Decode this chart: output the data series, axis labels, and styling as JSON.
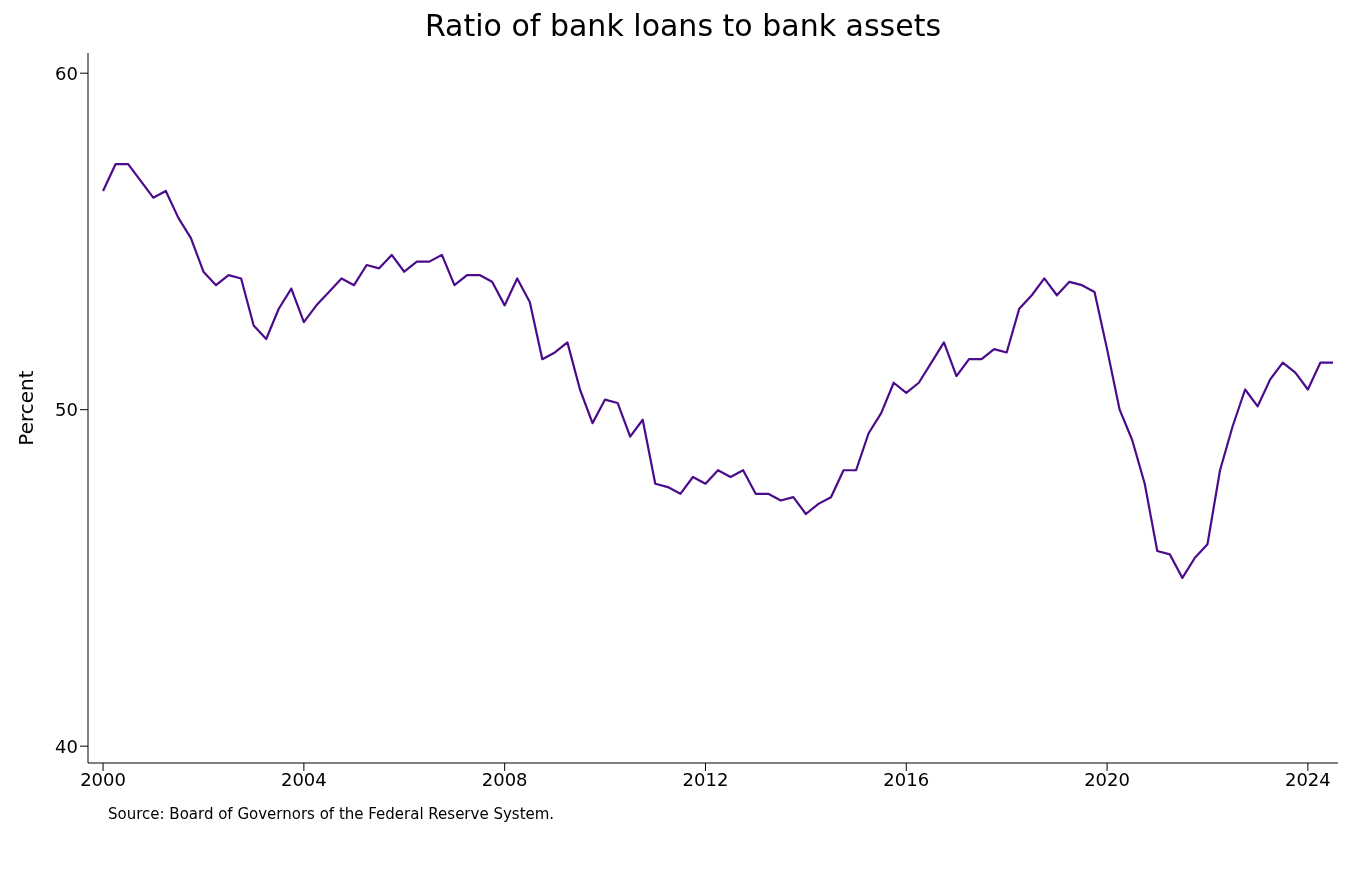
{
  "chart_data": {
    "type": "line",
    "title": "Ratio of bank loans to bank assets",
    "ylabel": "Percent",
    "annotations": [
      "Source: Board of Governors of the Federal Reserve System."
    ],
    "x": [
      2000,
      2000.25,
      2000.5,
      2000.75,
      2001,
      2001.25,
      2001.5,
      2001.75,
      2002,
      2002.25,
      2002.5,
      2002.75,
      2003,
      2003.25,
      2003.5,
      2003.75,
      2004,
      2004.25,
      2004.5,
      2004.75,
      2005,
      2005.25,
      2005.5,
      2005.75,
      2006,
      2006.25,
      2006.5,
      2006.75,
      2007,
      2007.25,
      2007.5,
      2007.75,
      2008,
      2008.25,
      2008.5,
      2008.75,
      2009,
      2009.25,
      2009.5,
      2009.75,
      2010,
      2010.25,
      2010.5,
      2010.75,
      2011,
      2011.25,
      2011.5,
      2011.75,
      2012,
      2012.25,
      2012.5,
      2012.75,
      2013,
      2013.25,
      2013.5,
      2013.75,
      2014,
      2014.25,
      2014.5,
      2014.75,
      2015,
      2015.25,
      2015.5,
      2015.75,
      2016,
      2016.25,
      2016.5,
      2016.75,
      2017,
      2017.25,
      2017.5,
      2017.75,
      2018,
      2018.25,
      2018.5,
      2018.75,
      2019,
      2019.25,
      2019.5,
      2019.75,
      2020,
      2020.25,
      2020.5,
      2020.75,
      2021,
      2021.25,
      2021.5,
      2021.75,
      2022,
      2022.25,
      2022.5,
      2022.75,
      2023,
      2023.25,
      2023.5,
      2023.75,
      2024,
      2024.25,
      2024.5
    ],
    "series": [
      {
        "color": "#4b0c8c",
        "values": [
          56.5,
          57.3,
          57.3,
          56.8,
          56.3,
          56.5,
          55.7,
          55.1,
          54.1,
          53.7,
          54.0,
          53.9,
          52.5,
          52.1,
          53.0,
          53.6,
          52.6,
          53.1,
          53.5,
          53.9,
          53.7,
          54.3,
          54.2,
          54.6,
          54.1,
          54.4,
          54.4,
          54.6,
          53.7,
          54.0,
          54.0,
          53.8,
          53.1,
          53.9,
          53.2,
          51.5,
          51.7,
          52.0,
          50.6,
          49.6,
          50.3,
          50.2,
          49.2,
          49.7,
          47.8,
          47.7,
          47.5,
          48.0,
          47.8,
          48.2,
          48.0,
          48.2,
          47.5,
          47.5,
          47.3,
          47.4,
          46.9,
          47.2,
          47.4,
          48.2,
          48.2,
          49.3,
          49.9,
          50.8,
          50.5,
          50.8,
          51.4,
          52.0,
          51.0,
          51.5,
          51.5,
          51.8,
          51.7,
          53.0,
          53.4,
          53.9,
          53.4,
          53.8,
          53.7,
          53.5,
          51.8,
          50.0,
          49.1,
          47.8,
          45.8,
          45.7,
          45.0,
          45.6,
          46.0,
          48.2,
          49.5,
          50.6,
          50.1,
          50.9,
          51.4,
          51.1,
          50.6,
          51.4,
          51.4
        ]
      }
    ],
    "xlim": [
      1999.7,
      2024.6
    ],
    "xticks": [
      2000,
      2004,
      2008,
      2012,
      2016,
      2020,
      2024
    ],
    "ylim": [
      39.5,
      60.6
    ],
    "yticks": [
      40,
      50,
      60
    ],
    "grid": false,
    "legend": false,
    "marker": "none",
    "line_style": "solid"
  }
}
